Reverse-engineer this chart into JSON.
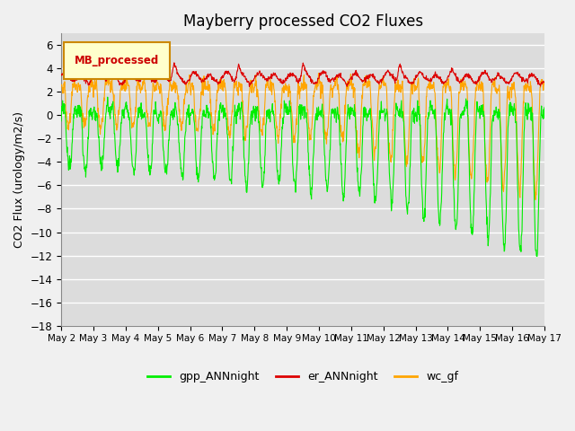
{
  "title": "Mayberry processed CO2 Fluxes",
  "ylabel": "CO2 Flux (urology/m2/s)",
  "ylim": [
    -18,
    7
  ],
  "yticks": [
    -18,
    -16,
    -14,
    -12,
    -10,
    -8,
    -6,
    -4,
    -2,
    0,
    2,
    4,
    6
  ],
  "date_labels": [
    "May 2",
    "May 3",
    "May 4",
    "May 5",
    "May 6",
    "May 7",
    "May 8",
    "May 9",
    "May 10",
    "May 11",
    "May 12",
    "May 13",
    "May 14",
    "May 15",
    "May 16",
    "May 17"
  ],
  "legend_label": "MB_processed",
  "line_labels": [
    "gpp_ANNnight",
    "er_ANNnight",
    "wc_gf"
  ],
  "colors": {
    "gpp_ANNnight": "#00EE00",
    "er_ANNnight": "#DD0000",
    "wc_gf": "#FFA500"
  },
  "legend_box_facecolor": "#FFFFCC",
  "legend_box_edgecolor": "#CC8800",
  "plot_bg": "#DCDCDC",
  "fig_bg": "#F0F0F0",
  "grid_color": "#FFFFFF",
  "seed": 99,
  "n_points": 1440,
  "days": 15
}
